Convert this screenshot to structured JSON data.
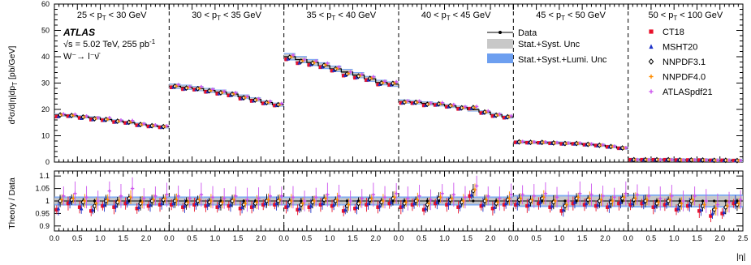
{
  "chart_data": {
    "type": "line",
    "experiment": "ATLAS",
    "energy_text": "√s = 5.02 TeV, 255 pb",
    "energy_sup": "-1",
    "process_text": "W⁻→ l⁻ν̄",
    "top_panel": {
      "ylabel": "d²σ/d|η|dp",
      "ylabel_sub": "T",
      "ylabel_unit": " [pb/GeV]",
      "ylim": [
        0,
        60
      ],
      "yticks": [
        "0",
        "10",
        "20",
        "30",
        "40",
        "50",
        "60"
      ]
    },
    "ratio_panel": {
      "ylabel": "Theory / Data",
      "ylim": [
        0.88,
        1.12
      ],
      "yticks": [
        "0.9",
        "0.95",
        "1",
        "1.05",
        "1.1"
      ]
    },
    "x_axis": {
      "label": "|η|",
      "range_per_block": [
        0,
        2.5
      ],
      "ticks": [
        "0.0",
        "0.5",
        "1.0",
        "1.5",
        "2.0"
      ],
      "last_ticks": [
        "0.0",
        "0.5",
        "1.0",
        "1.5",
        "2.0",
        "2.5"
      ]
    },
    "pt_bins": [
      {
        "label": "25 < p",
        "sub": "T",
        "rest": " < 30 GeV"
      },
      {
        "label": "30 < p",
        "sub": "T",
        "rest": " < 35 GeV"
      },
      {
        "label": "35 < p",
        "sub": "T",
        "rest": " < 40 GeV"
      },
      {
        "label": "40 < p",
        "sub": "T",
        "rest": " < 45 GeV"
      },
      {
        "label": "45 < p",
        "sub": "T",
        "rest": " < 50 GeV"
      },
      {
        "label": "50 < p",
        "sub": "T",
        "rest": " < 100 GeV"
      }
    ],
    "eta_edges": [
      0,
      0.25,
      0.5,
      0.75,
      1.0,
      1.25,
      1.5,
      1.75,
      2.0,
      2.25,
      2.5
    ],
    "data": [
      [
        17.9,
        17.6,
        17.2,
        16.8,
        16.2,
        15.6,
        15.0,
        14.4,
        13.8,
        13.4
      ],
      [
        28.8,
        28.4,
        27.9,
        27.2,
        26.6,
        25.8,
        24.8,
        23.8,
        22.6,
        21.8
      ],
      [
        40.0,
        38.9,
        37.8,
        36.6,
        35.4,
        34.2,
        33.0,
        31.6,
        30.2,
        29.6
      ],
      [
        23.0,
        22.7,
        22.3,
        21.9,
        21.3,
        20.7,
        19.9,
        19.0,
        18.0,
        17.1
      ],
      [
        7.6,
        7.5,
        7.4,
        7.3,
        7.2,
        7.0,
        6.7,
        6.4,
        5.9,
        5.3
      ],
      [
        0.9,
        0.9,
        0.9,
        0.9,
        0.8,
        0.8,
        0.8,
        0.7,
        0.7,
        0.6
      ]
    ],
    "legend": {
      "data": "Data",
      "unc1": "Stat.+Syst. Unc",
      "unc2": "Stat.+Syst.+Lumi. Unc"
    },
    "series": [
      {
        "name": "CT18",
        "color": "#e8102a",
        "marker": "square",
        "ratios": [
          0.965,
          0.99,
          0.975,
          0.96,
          0.98,
          0.975,
          0.99,
          0.97,
          0.98,
          0.985,
          0.985,
          0.975,
          0.985,
          0.98,
          0.975,
          0.98,
          0.97,
          0.975,
          0.985,
          0.985,
          0.975,
          0.965,
          0.975,
          0.985,
          0.98,
          0.96,
          0.97,
          0.985,
          0.975,
          0.99,
          0.975,
          0.985,
          0.965,
          0.99,
          0.985,
          0.975,
          1.02,
          0.98,
          0.97,
          0.985,
          0.985,
          0.98,
          0.99,
          0.975,
          0.96,
          0.99,
          0.985,
          0.98,
          0.975,
          0.99,
          0.985,
          0.99,
          0.975,
          0.985,
          0.965,
          0.98,
          0.96,
          0.94,
          0.95,
          0.99
        ]
      },
      {
        "name": "MSHT20",
        "color": "#1e32c8",
        "marker": "triangle",
        "ratios": [
          0.97,
          0.995,
          0.97,
          0.965,
          0.985,
          0.98,
          0.995,
          0.975,
          0.985,
          0.99,
          0.99,
          0.98,
          0.99,
          0.985,
          0.98,
          0.985,
          0.975,
          0.98,
          0.99,
          0.99,
          0.98,
          0.97,
          0.98,
          0.99,
          0.985,
          0.965,
          0.975,
          0.99,
          0.98,
          0.995,
          0.98,
          0.99,
          0.97,
          0.995,
          0.99,
          0.98,
          1.025,
          0.985,
          0.975,
          0.99,
          0.99,
          0.985,
          0.995,
          0.98,
          0.965,
          0.995,
          0.99,
          0.985,
          0.98,
          0.995,
          0.99,
          0.995,
          0.98,
          0.99,
          0.97,
          0.985,
          0.965,
          0.95,
          0.955,
          0.995
        ]
      },
      {
        "name": "NNPDF3.1",
        "color": "#000000",
        "marker": "diamond",
        "ratios": [
          1.0,
          1.005,
          0.995,
          0.98,
          1.0,
          0.995,
          1.01,
          0.99,
          1.0,
          1.005,
          1.0,
          0.99,
          1.0,
          0.995,
          0.99,
          1.0,
          0.985,
          0.99,
          1.0,
          1.0,
          0.995,
          0.985,
          0.995,
          1.005,
          1.0,
          0.98,
          0.99,
          1.005,
          0.995,
          1.01,
          0.99,
          1.0,
          0.985,
          1.01,
          1.005,
          0.995,
          1.04,
          1.0,
          0.99,
          1.005,
          1.005,
          1.0,
          1.01,
          0.995,
          0.98,
          1.01,
          1.005,
          1.0,
          0.995,
          1.01,
          1.005,
          1.0,
          0.99,
          1.0,
          0.985,
          1.0,
          0.98,
          0.965,
          0.975,
          0.985
        ]
      },
      {
        "name": "NNPDF4.0",
        "color": "#ff8c00",
        "marker": "cross",
        "ratios": [
          1.005,
          1.01,
          1.0,
          0.99,
          1.005,
          1.0,
          1.015,
          0.995,
          1.005,
          1.01,
          1.005,
          0.995,
          1.005,
          1.0,
          0.995,
          1.005,
          0.99,
          0.995,
          1.005,
          1.005,
          1.0,
          0.99,
          1.0,
          1.01,
          1.005,
          0.985,
          0.995,
          1.01,
          1.0,
          1.015,
          0.995,
          1.005,
          0.99,
          1.015,
          1.01,
          1.0,
          1.045,
          1.005,
          0.995,
          1.01,
          1.01,
          1.005,
          1.015,
          1.0,
          0.985,
          1.015,
          1.01,
          1.005,
          1.0,
          1.015,
          1.01,
          1.005,
          0.995,
          1.005,
          0.99,
          1.005,
          0.985,
          0.97,
          0.98,
          0.99
        ]
      },
      {
        "name": "ATLASpdf21",
        "color": "#cc55ee",
        "marker": "cross",
        "ratios": [
          1.02,
          1.03,
          1.015,
          1.0,
          1.04,
          1.02,
          1.05,
          1.01,
          1.02,
          1.025,
          1.02,
          1.01,
          1.025,
          1.015,
          1.01,
          1.02,
          1.005,
          1.01,
          1.02,
          1.02,
          1.015,
          1.0,
          1.015,
          1.025,
          1.02,
          1.0,
          1.01,
          1.025,
          1.015,
          1.03,
          1.01,
          1.02,
          1.005,
          1.03,
          1.025,
          1.015,
          1.06,
          1.02,
          1.01,
          1.025,
          1.025,
          1.02,
          1.03,
          1.015,
          1.0,
          1.03,
          1.025,
          1.02,
          1.015,
          1.03,
          1.025,
          1.02,
          1.01,
          1.02,
          1.0,
          1.02,
          1.0,
          0.985,
          0.995,
          1.005
        ]
      }
    ]
  }
}
